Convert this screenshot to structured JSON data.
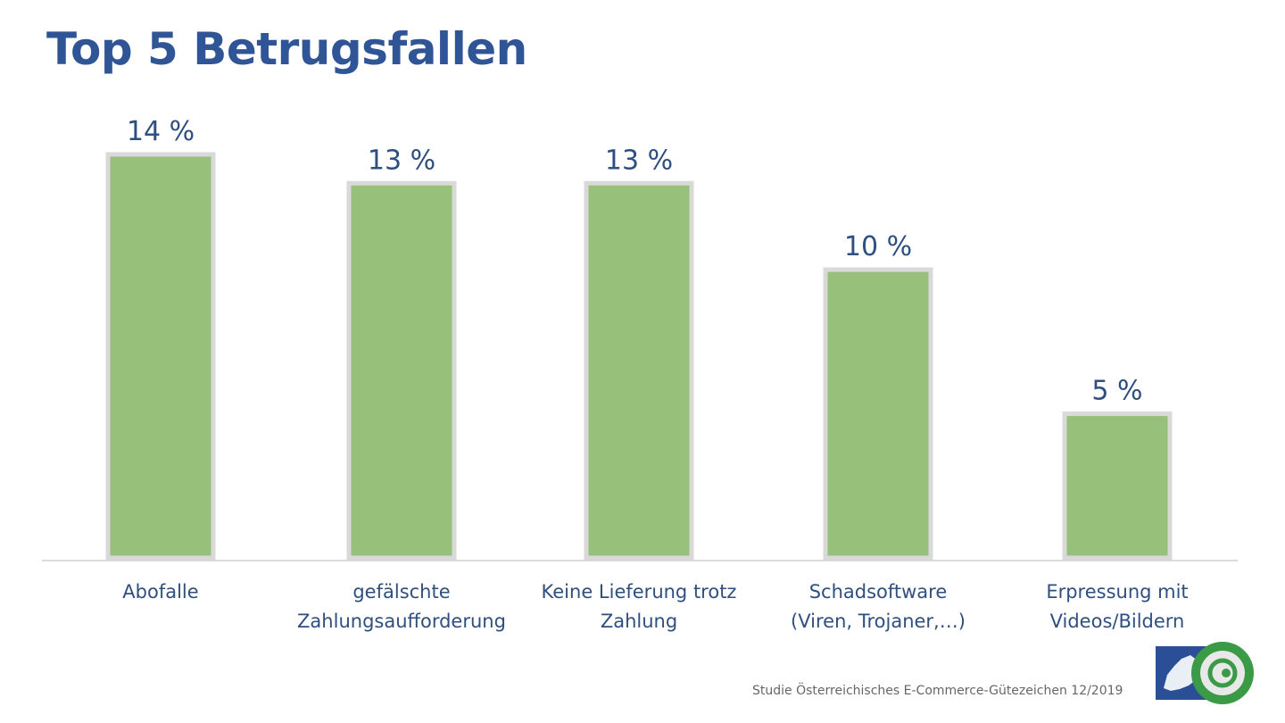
{
  "title": "Top 5 Betrugsfallen",
  "source": "Studie Österreichisches E-Commerce-Gütezeichen 12/2019",
  "logo": {
    "text": "Österreichisches E-Commerce-Gütezeichen",
    "colors": {
      "green": "#3a9a46",
      "blue": "#2a4f96"
    }
  },
  "colors": {
    "bar_fill": "#97c07b",
    "bar_border": "#d9d9d9",
    "text": "#2f4f80",
    "title": "#2f5597"
  },
  "chart_data": {
    "type": "bar",
    "title": "Top 5 Betrugsfallen",
    "categories": [
      [
        "Abofalle"
      ],
      [
        "gefälschte",
        "Zahlungsaufforderung"
      ],
      [
        "Keine Lieferung trotz",
        "Zahlung"
      ],
      [
        "Schadsoftware",
        "(Viren, Trojaner,…)"
      ],
      [
        "Erpressung mit",
        "Videos/Bildern"
      ]
    ],
    "values": [
      14,
      13,
      13,
      10,
      5
    ],
    "data_labels": [
      "14 %",
      "13 %",
      "13 %",
      "10 %",
      "5 %"
    ],
    "ylim": [
      0,
      14
    ],
    "grid": false,
    "legend": "none"
  }
}
